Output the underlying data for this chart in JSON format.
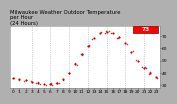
{
  "title": "Milwaukee Weather Outdoor Temperature\nper Hour\n(24 Hours)",
  "background_color": "#b0b0b0",
  "plot_bg_color": "#ffffff",
  "hours": [
    0,
    1,
    2,
    3,
    4,
    5,
    6,
    7,
    8,
    9,
    10,
    11,
    12,
    13,
    14,
    15,
    16,
    17,
    18,
    19,
    20,
    21,
    22,
    23
  ],
  "temps": [
    36,
    35,
    34,
    33,
    32,
    31,
    31,
    32,
    35,
    40,
    47,
    55,
    62,
    68,
    72,
    73,
    72,
    69,
    64,
    57,
    50,
    44,
    40,
    37
  ],
  "dot_color": "#cc0000",
  "highlight_bg": "#ff0000",
  "highlight_text": "#ffffff",
  "ylim": [
    28,
    78
  ],
  "xlim": [
    -0.5,
    23.5
  ],
  "ytick_values": [
    30,
    40,
    50,
    60,
    70
  ],
  "max_temp": "73",
  "max_hour": 15,
  "dot_size": 2.5,
  "font_size_title": 3.8,
  "font_size_ticks": 3.2,
  "vline_color": "#aaaaaa",
  "vline_positions": [
    3,
    6,
    9,
    12,
    15,
    18,
    21
  ]
}
